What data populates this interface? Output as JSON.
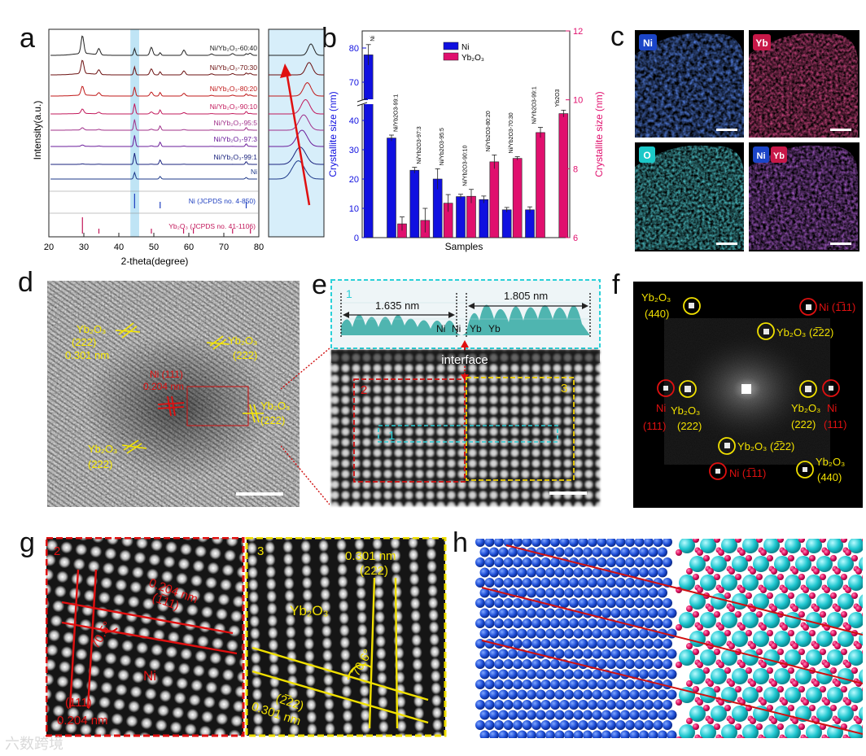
{
  "panel_labels": [
    "a",
    "b",
    "c",
    "d",
    "e",
    "f",
    "g",
    "h"
  ],
  "chart_data": [
    {
      "type": "line",
      "panel": "a",
      "title": "",
      "xlabel": "2-theta(degree)",
      "ylabel": "Intensity(a.u.)",
      "xlim": [
        20,
        80
      ],
      "xticks": [
        20,
        30,
        40,
        50,
        60,
        70,
        80
      ],
      "series": [
        {
          "name": "Ni/Yb2O3-60:40",
          "display": "Ni/Yb₂O₃-60:40",
          "color": "#222222"
        },
        {
          "name": "Ni/Yb2O3-70:30",
          "display": "Ni/Yb₂O₃-70:30",
          "color": "#6b1010"
        },
        {
          "name": "Ni/Yb2O3-80:20",
          "display": "Ni/Yb₂O₃-80:20",
          "color": "#c01818"
        },
        {
          "name": "Ni/Yb2O3-90:10",
          "display": "Ni/Yb₂O₃-90:10",
          "color": "#c2185b"
        },
        {
          "name": "Ni/Yb2O3-95:5",
          "display": "Ni/Yb₂O₃-95:5",
          "color": "#a0308a"
        },
        {
          "name": "Ni/Yb2O3-97:3",
          "display": "Ni/Yb₂O₃-97:3",
          "color": "#6a1b9a"
        },
        {
          "name": "Ni/Yb2O3-99:1",
          "display": "Ni/Yb₂O₃-99:1",
          "color": "#1a237e"
        },
        {
          "name": "Ni",
          "display": "Ni",
          "color": "#1e3a8a"
        }
      ],
      "references": [
        {
          "name": "Ni (JCPDS no. 4-850)",
          "color": "#1e3fbf",
          "peaks": [
            44.5,
            51.8,
            76.4
          ]
        },
        {
          "name": "Yb2O3 (JCPDS no. 41-1106)",
          "display": "Yb₂O₃ (JCPDS no. 41-1106)",
          "color": "#c2185b",
          "peaks": [
            29.6,
            34.3,
            49.3,
            58.5,
            61.3,
            72.5,
            77.6
          ]
        }
      ],
      "highlight_band": [
        43.3,
        45.8
      ]
    },
    {
      "type": "bar",
      "panel": "b",
      "xlabel": "Samples",
      "ylabel_left": "Crystallite size (nm)",
      "ylabel_right": "Crystallite size (nm)",
      "left_ticks": [
        0,
        10,
        20,
        30,
        40,
        70,
        80
      ],
      "right_ticks": [
        6,
        8,
        10,
        12
      ],
      "right_ylim": [
        6,
        12
      ],
      "categories": [
        "Ni",
        "Ni/Yb2O3-99:1",
        "Ni/Yb2O3-97:3",
        "Ni/Yb2O3-95:5",
        "Ni/Yb2O3-90:10",
        "Ni/Yb2O3-80:20",
        "Ni/Yb2O3-70:30",
        "Ni/Yb2O3-99:1",
        "Yb2O3"
      ],
      "series": [
        {
          "name": "Ni",
          "color": "#1010e0",
          "axis": "left",
          "values": [
            78,
            34,
            23,
            20,
            14,
            13,
            9.5,
            9.5,
            null
          ],
          "errors": [
            3,
            1,
            1,
            3.5,
            0.8,
            1.2,
            0.8,
            1,
            null
          ]
        },
        {
          "name": "Yb2O3",
          "display": "Yb₂O₃",
          "color": "#e0106e",
          "axis": "right",
          "values": [
            null,
            6.4,
            6.5,
            7.0,
            7.2,
            8.2,
            8.3,
            9.05,
            9.6
          ],
          "errors": [
            null,
            0.2,
            0.35,
            0.25,
            0.2,
            0.2,
            0.05,
            0.15,
            0.1
          ]
        }
      ]
    }
  ],
  "panel_c": {
    "tiles": [
      {
        "label": "Ni",
        "color": "#1b45c8"
      },
      {
        "label": "Yb",
        "color": "#c81848"
      },
      {
        "label": "O",
        "color": "#1bc8c8"
      },
      {
        "label_a": "Ni",
        "label_b": "Yb"
      }
    ]
  },
  "panel_d": {
    "annotations": [
      {
        "text": "Yb₂O₃"
      },
      {
        "text": "(222)"
      },
      {
        "text": "0.301 nm"
      },
      {
        "text": "Yb₂O₃"
      },
      {
        "text": "(222)"
      },
      {
        "text": "Ni (111)"
      },
      {
        "text": "0.204 nm"
      },
      {
        "text": "Yb₂O₃"
      },
      {
        "text": "(222)"
      },
      {
        "text": "Yb₂O₃"
      },
      {
        "text": "(222)"
      }
    ]
  },
  "panel_e": {
    "profile_label": "1",
    "dist_left": "1.635 nm",
    "dist_right": "1.805 nm",
    "atoms": [
      "Ni",
      "Ni",
      "Yb",
      "Yb"
    ],
    "interface": "interface",
    "region_labels": [
      "2",
      "3",
      "1"
    ]
  },
  "panel_f": {
    "spots": [
      {
        "text": "Yb₂O₃",
        "sub": "(440)"
      },
      {
        "text": "Ni (1̅11)",
        "sub": ""
      },
      {
        "text": "Yb₂O₃ (2̅22)",
        "sub": ""
      },
      {
        "text": "Ni",
        "sub": "(111)"
      },
      {
        "text": "Yb₂O₃",
        "sub": "(222)"
      },
      {
        "text": "Yb₂O₃",
        "sub": "(222)"
      },
      {
        "text": "Ni",
        "sub": "(111)"
      },
      {
        "text": "Yb₂O₃ (2̅22)",
        "sub": ""
      },
      {
        "text": "Ni (1̅11)",
        "sub": ""
      },
      {
        "text": "Yb₂O₃",
        "sub": "(440)"
      }
    ]
  },
  "panel_g": {
    "left": {
      "num": "2",
      "d1": "0.204 nm",
      "hkl1": "(1̅11)",
      "angle": "70.5°",
      "phase": "Ni",
      "hkl2": "(111)",
      "d2": "0.204 nm"
    },
    "right": {
      "num": "3",
      "d1": "0.301 nm",
      "hkl1": "(222)",
      "phase": "Yb₂O₃",
      "angle": "70.6°",
      "hkl2": "(2̅22)",
      "d2": "0.301 nm"
    }
  },
  "watermark": "六数跨境"
}
